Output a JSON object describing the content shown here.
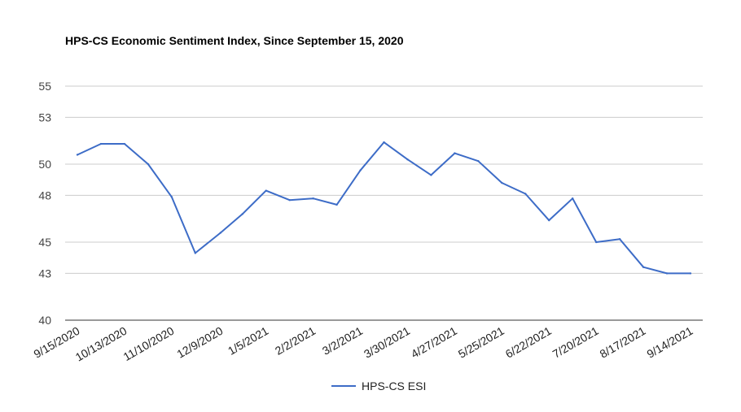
{
  "chart_data": {
    "type": "line",
    "title": "HPS-CS Economic Sentiment Index, Since September 15, 2020",
    "xlabel": "",
    "ylabel": "",
    "ylim": [
      40,
      55
    ],
    "yticks": [
      40,
      43,
      45,
      48,
      50,
      53,
      55
    ],
    "grid": true,
    "legend_position": "bottom",
    "line_color": "#3d6cc7",
    "x_tick_labels": [
      "9/15/2020",
      "10/13/2020",
      "11/10/2020",
      "12/9/2020",
      "1/5/2021",
      "2/2/2021",
      "3/2/2021",
      "3/30/2021",
      "4/27/2021",
      "5/25/2021",
      "6/22/2021",
      "7/20/2021",
      "8/17/2021",
      "9/14/2021"
    ],
    "x": [
      "9/15/2020",
      "9/29/2020",
      "10/13/2020",
      "10/27/2020",
      "11/10/2020",
      "11/24/2020",
      "12/9/2020",
      "12/22/2020",
      "1/5/2021",
      "1/19/2021",
      "2/2/2021",
      "2/16/2021",
      "3/2/2021",
      "3/16/2021",
      "3/30/2021",
      "4/13/2021",
      "4/27/2021",
      "5/11/2021",
      "5/25/2021",
      "6/8/2021",
      "6/22/2021",
      "7/6/2021",
      "7/20/2021",
      "8/3/2021",
      "8/17/2021",
      "8/31/2021",
      "9/14/2021"
    ],
    "series": [
      {
        "name": "HPS-CS ESI",
        "values": [
          50.6,
          51.3,
          51.3,
          50.0,
          47.9,
          44.3,
          45.6,
          46.8,
          48.3,
          47.7,
          47.8,
          47.4,
          49.6,
          51.4,
          50.3,
          49.3,
          50.7,
          50.2,
          48.8,
          48.1,
          46.4,
          47.8,
          45.0,
          45.2,
          43.4,
          43.0,
          43.0
        ]
      }
    ]
  }
}
